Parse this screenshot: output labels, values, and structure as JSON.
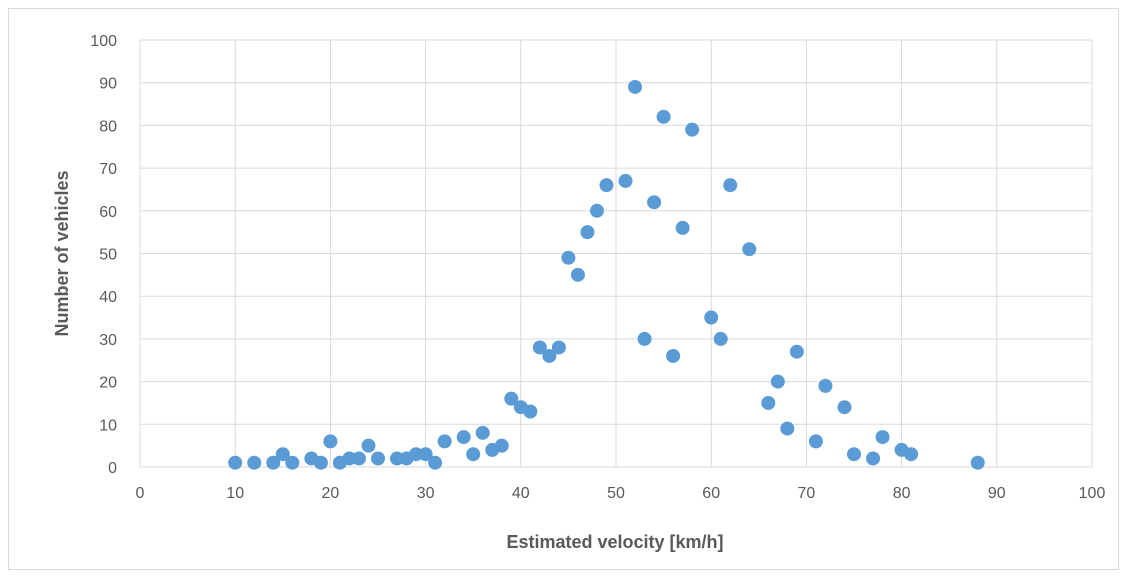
{
  "chart_data": {
    "type": "scatter",
    "title": "",
    "xlabel": "Estimated velocity [km/h]",
    "ylabel": "Number of vehicles",
    "xlim": [
      0,
      100
    ],
    "ylim": [
      0,
      100
    ],
    "xticks": [
      0,
      10,
      20,
      30,
      40,
      50,
      60,
      70,
      80,
      90,
      100
    ],
    "yticks": [
      0,
      10,
      20,
      30,
      40,
      50,
      60,
      70,
      80,
      90,
      100
    ],
    "grid": true,
    "legend": "none",
    "marker_color": "#5b9bd5",
    "points": [
      {
        "x": 10,
        "y": 1
      },
      {
        "x": 12,
        "y": 1
      },
      {
        "x": 14,
        "y": 1
      },
      {
        "x": 15,
        "y": 3
      },
      {
        "x": 16,
        "y": 1
      },
      {
        "x": 18,
        "y": 2
      },
      {
        "x": 19,
        "y": 1
      },
      {
        "x": 20,
        "y": 6
      },
      {
        "x": 21,
        "y": 1
      },
      {
        "x": 22,
        "y": 2
      },
      {
        "x": 23,
        "y": 2
      },
      {
        "x": 24,
        "y": 5
      },
      {
        "x": 25,
        "y": 2
      },
      {
        "x": 27,
        "y": 2
      },
      {
        "x": 28,
        "y": 2
      },
      {
        "x": 29,
        "y": 3
      },
      {
        "x": 30,
        "y": 3
      },
      {
        "x": 31,
        "y": 1
      },
      {
        "x": 32,
        "y": 6
      },
      {
        "x": 34,
        "y": 7
      },
      {
        "x": 35,
        "y": 3
      },
      {
        "x": 36,
        "y": 8
      },
      {
        "x": 37,
        "y": 4
      },
      {
        "x": 38,
        "y": 5
      },
      {
        "x": 39,
        "y": 16
      },
      {
        "x": 40,
        "y": 14
      },
      {
        "x": 41,
        "y": 13
      },
      {
        "x": 42,
        "y": 28
      },
      {
        "x": 43,
        "y": 26
      },
      {
        "x": 44,
        "y": 28
      },
      {
        "x": 45,
        "y": 49
      },
      {
        "x": 46,
        "y": 45
      },
      {
        "x": 47,
        "y": 55
      },
      {
        "x": 48,
        "y": 60
      },
      {
        "x": 49,
        "y": 66
      },
      {
        "x": 51,
        "y": 67
      },
      {
        "x": 52,
        "y": 89
      },
      {
        "x": 53,
        "y": 30
      },
      {
        "x": 54,
        "y": 62
      },
      {
        "x": 55,
        "y": 82
      },
      {
        "x": 56,
        "y": 26
      },
      {
        "x": 57,
        "y": 56
      },
      {
        "x": 58,
        "y": 79
      },
      {
        "x": 60,
        "y": 35
      },
      {
        "x": 61,
        "y": 30
      },
      {
        "x": 62,
        "y": 66
      },
      {
        "x": 64,
        "y": 51
      },
      {
        "x": 66,
        "y": 15
      },
      {
        "x": 67,
        "y": 20
      },
      {
        "x": 68,
        "y": 9
      },
      {
        "x": 69,
        "y": 27
      },
      {
        "x": 71,
        "y": 6
      },
      {
        "x": 72,
        "y": 19
      },
      {
        "x": 74,
        "y": 14
      },
      {
        "x": 75,
        "y": 3
      },
      {
        "x": 77,
        "y": 2
      },
      {
        "x": 78,
        "y": 7
      },
      {
        "x": 80,
        "y": 4
      },
      {
        "x": 81,
        "y": 3
      },
      {
        "x": 88,
        "y": 1
      }
    ]
  }
}
